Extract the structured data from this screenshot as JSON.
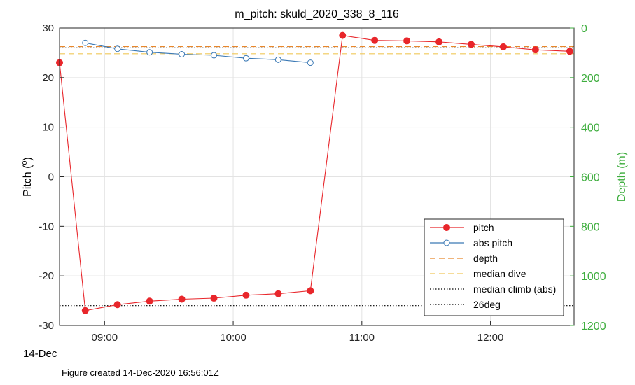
{
  "chart_data": {
    "type": "line",
    "title": "m_pitch: skuld_2020_338_8_116",
    "ylabel_left": "Pitch (",
    "ylabel_left_sup": "o",
    "ylabel_left_close": ")",
    "ylabel_right": "Depth (m)",
    "date_label": "14-Dec",
    "footer": "Figure created 14-Dec-2020 16:56:01Z",
    "ylim_left": [
      -30,
      30
    ],
    "ylim_right": [
      0,
      1200
    ],
    "right_axis_reversed": true,
    "xlim": [
      "08:39",
      "12:39"
    ],
    "x_ticks": [
      "09:00",
      "10:00",
      "11:00",
      "12:00"
    ],
    "y_ticks_left": [
      "30",
      "20",
      "10",
      "0",
      "-10",
      "-20",
      "-30"
    ],
    "y_ticks_right": [
      "0",
      "200",
      "400",
      "600",
      "800",
      "1000",
      "1200"
    ],
    "grid": true,
    "legend_position": "bottom-right",
    "series": [
      {
        "name": "pitch",
        "color": "#e8262b",
        "marker": "filled-circle",
        "x": [
          "08:39",
          "08:51",
          "09:06",
          "09:21",
          "09:36",
          "09:51",
          "10:06",
          "10:21",
          "10:36",
          "10:51",
          "11:06",
          "11:21",
          "11:36",
          "11:51",
          "12:06",
          "12:21",
          "12:37"
        ],
        "y": [
          23,
          -27,
          -25.8,
          -25.1,
          -24.7,
          -24.5,
          -23.9,
          -23.6,
          -23,
          28.5,
          27.5,
          27.4,
          27.2,
          26.7,
          26.2,
          25.6,
          25.3
        ]
      },
      {
        "name": "abs pitch",
        "color": "#3b79b5",
        "marker": "open-circle",
        "x": [
          "08:51",
          "09:06",
          "09:21",
          "09:36",
          "09:51",
          "10:06",
          "10:21",
          "10:36"
        ],
        "y": [
          27,
          25.8,
          25.1,
          24.7,
          24.5,
          23.9,
          23.6,
          23
        ]
      },
      {
        "name": "depth",
        "color": "#e8872b",
        "style": "dashed",
        "y_right": [
          75
        ]
      },
      {
        "name": "median dive",
        "color": "#f0c85a",
        "style": "dashed",
        "y": [
          24.8
        ]
      },
      {
        "name": "median climb (abs)",
        "color": "#000000",
        "style": "dotted",
        "y": [
          26
        ]
      },
      {
        "name": "26deg",
        "color": "#000000",
        "style": "dotted",
        "y": [
          -26
        ]
      }
    ]
  }
}
